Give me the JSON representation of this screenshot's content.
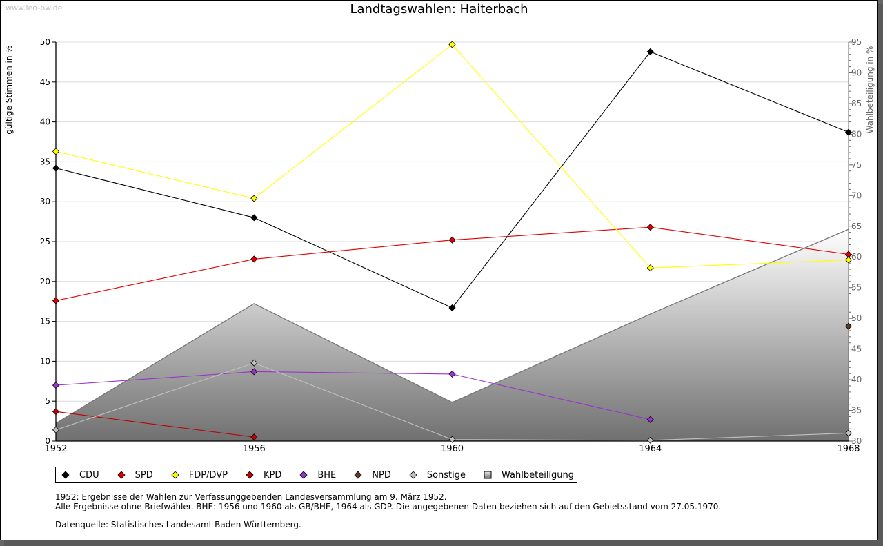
{
  "watermark": "www.leo-bw.de",
  "legend": [
    {
      "name": "CDU",
      "marker": "diamond",
      "color": "#000000"
    },
    {
      "name": "SPD",
      "marker": "diamond",
      "color": "#e00000"
    },
    {
      "name": "FDP/DVP",
      "marker": "diamond",
      "color": "#ffff00"
    },
    {
      "name": "KPD",
      "marker": "diamond",
      "color": "#c00000"
    },
    {
      "name": "BHE",
      "marker": "diamond",
      "color": "#9933cc"
    },
    {
      "name": "NPD",
      "marker": "diamond",
      "color": "#5a3a28"
    },
    {
      "name": "Sonstige",
      "marker": "diamond",
      "color": "#c0c0c0"
    },
    {
      "name": "Wahlbeteiligung",
      "marker": "square",
      "color": "#a0a0a0"
    }
  ],
  "notes": {
    "line1": "1952: Ergebnisse der Wahlen zur Verfassunggebenden Landesversammlung am 9. März 1952.",
    "line2": "Alle Ergebnisse ohne Briefwähler. BHE: 1956 und 1960 als GB/BHE, 1964 als GDP. Die angegebenen Daten beziehen sich auf den Gebietsstand vom 27.05.1970.",
    "line3": "Datenquelle: Statistisches Landesamt Baden-Württemberg."
  },
  "chart_data": {
    "type": "line",
    "title": "Landtagswahlen: Haiterbach",
    "xlabel": "",
    "ylabel": "gültige Stimmen in %",
    "y2label": "Wahlbeteiligung in %",
    "x": [
      1952,
      1956,
      1960,
      1964,
      1968
    ],
    "x_tick_labels": [
      "1952",
      "1956",
      "1960",
      "1964",
      "1968"
    ],
    "ylim": [
      0,
      50
    ],
    "y_ticks": [
      0,
      5,
      10,
      15,
      20,
      25,
      30,
      35,
      40,
      45,
      50
    ],
    "y2lim": [
      30,
      95
    ],
    "y2_ticks": [
      30,
      35,
      40,
      45,
      50,
      55,
      60,
      65,
      70,
      75,
      80,
      85,
      90,
      95
    ],
    "grid": true,
    "legend_position": "bottom",
    "series": [
      {
        "name": "CDU",
        "color": "#000000",
        "values": [
          34.2,
          28.0,
          16.7,
          48.8,
          38.7
        ]
      },
      {
        "name": "SPD",
        "color": "#e00000",
        "values": [
          17.6,
          22.8,
          25.2,
          26.8,
          23.4
        ]
      },
      {
        "name": "FDP/DVP",
        "color": "#ffff00",
        "values": [
          36.3,
          30.4,
          49.7,
          21.7,
          22.7
        ]
      },
      {
        "name": "KPD",
        "color": "#c00000",
        "values": [
          3.7,
          0.5,
          null,
          null,
          null
        ]
      },
      {
        "name": "BHE",
        "color": "#9933cc",
        "values": [
          7.0,
          8.7,
          8.4,
          2.7,
          null
        ]
      },
      {
        "name": "NPD",
        "color": "#5a3a28",
        "values": [
          null,
          null,
          null,
          null,
          14.4
        ]
      },
      {
        "name": "Sonstige",
        "color": "#c0c0c0",
        "values": [
          1.4,
          9.8,
          0.2,
          0.1,
          1.0
        ]
      }
    ],
    "area_series": {
      "name": "Wahlbeteiligung",
      "axis": "right",
      "type": "area",
      "values": [
        32.9,
        52.4,
        36.3,
        50.7,
        64.5
      ]
    }
  }
}
